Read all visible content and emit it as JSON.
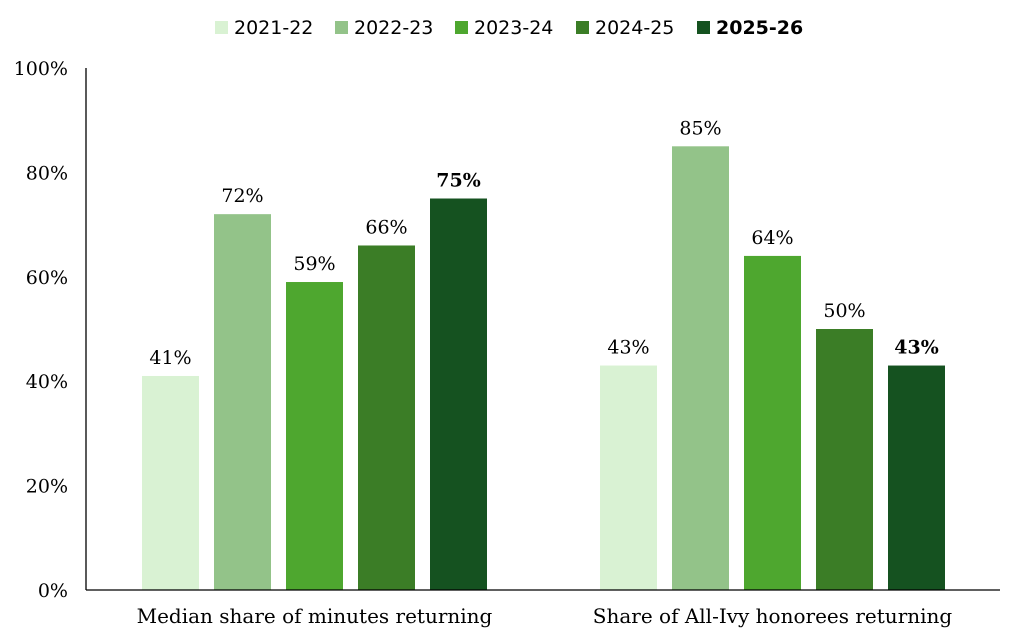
{
  "chart_data": {
    "type": "bar",
    "categories": [
      "Median share of minutes returning",
      "Share of All-Ivy honorees returning"
    ],
    "series": [
      {
        "name": "2021-22",
        "values": [
          41,
          43
        ],
        "color": "#d9f2d3",
        "bold": false
      },
      {
        "name": "2022-23",
        "values": [
          72,
          85
        ],
        "color": "#93c389",
        "bold": false
      },
      {
        "name": "2023-24",
        "values": [
          59,
          64
        ],
        "color": "#4ea72f",
        "bold": false
      },
      {
        "name": "2024-25",
        "values": [
          66,
          50
        ],
        "color": "#3b7d26",
        "bold": false
      },
      {
        "name": "2025-26",
        "values": [
          75,
          43
        ],
        "color": "#155220",
        "bold": true
      }
    ],
    "value_labels": [
      [
        "41%",
        "43%"
      ],
      [
        "72%",
        "85%"
      ],
      [
        "59%",
        "64%"
      ],
      [
        "66%",
        "50%"
      ],
      [
        "75%",
        "43%"
      ]
    ],
    "y_ticks": [
      "0%",
      "20%",
      "40%",
      "60%",
      "80%",
      "100%"
    ],
    "ylim": [
      0,
      100
    ],
    "title": "",
    "xlabel": "",
    "ylabel": "",
    "grid": false,
    "legend_position": "top"
  }
}
